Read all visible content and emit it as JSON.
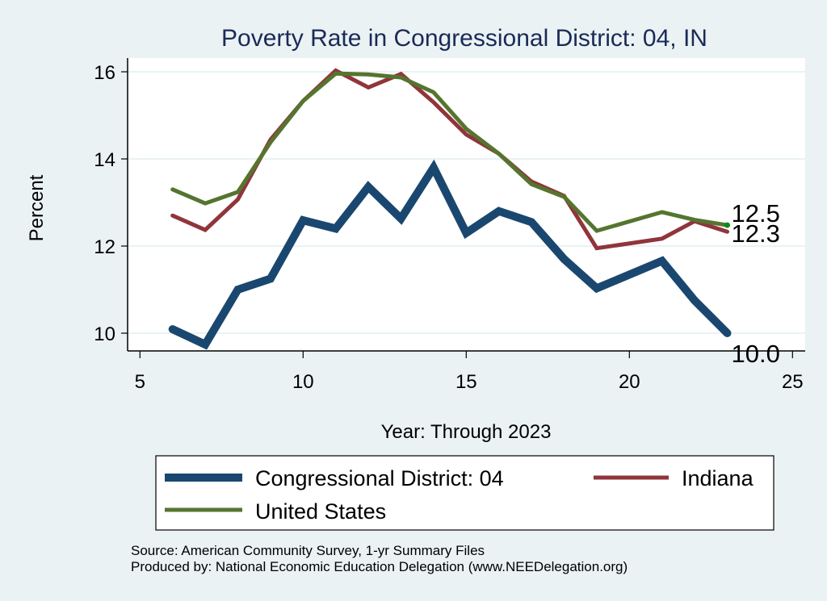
{
  "chart_data": {
    "type": "line",
    "title": "Poverty Rate in Congressional District:  04, IN",
    "xlabel": "Year: Through 2023",
    "ylabel": "Percent",
    "xlim": [
      4.6,
      25.4
    ],
    "ylim": [
      9.57,
      16.3
    ],
    "xticks": [
      5,
      10,
      15,
      20,
      25
    ],
    "yticks": [
      10,
      12,
      14,
      16
    ],
    "xtick_labels": [
      "5",
      "10",
      "15",
      "20",
      "25"
    ],
    "ytick_labels": [
      "10",
      "12",
      "14",
      "16"
    ],
    "grid": true,
    "legend_position": "bottom",
    "series": [
      {
        "name": "Congressional District:  04",
        "color": "#1a476f",
        "x": [
          6,
          7,
          8,
          9,
          10,
          11,
          12,
          13,
          14,
          15,
          16,
          17,
          18,
          19,
          21,
          22,
          23
        ],
        "values": [
          10.09,
          9.74,
          11.0,
          11.25,
          12.59,
          12.4,
          13.36,
          12.63,
          13.8,
          12.3,
          12.8,
          12.55,
          11.7,
          11.03,
          11.66,
          10.75,
          10.0
        ],
        "end_label": "10.0"
      },
      {
        "name": "Indiana",
        "color": "#90353b",
        "x": [
          6,
          7,
          8,
          9,
          10,
          11,
          12,
          13,
          14,
          15,
          16,
          17,
          18,
          19,
          21,
          22,
          23
        ],
        "values": [
          12.7,
          12.37,
          13.07,
          14.44,
          15.33,
          16.03,
          15.64,
          15.95,
          15.3,
          14.56,
          14.12,
          13.48,
          13.15,
          11.95,
          12.17,
          12.57,
          12.33
        ],
        "end_label": "12.3"
      },
      {
        "name": "United States",
        "color": "#55752f",
        "x": [
          6,
          7,
          8,
          9,
          10,
          11,
          12,
          13,
          14,
          15,
          16,
          17,
          18,
          19,
          21,
          22,
          23
        ],
        "values": [
          13.3,
          12.98,
          13.24,
          14.38,
          15.33,
          15.96,
          15.94,
          15.87,
          15.53,
          14.69,
          14.12,
          13.42,
          13.13,
          12.35,
          12.78,
          12.6,
          12.48
        ],
        "end_label": "12.5"
      }
    ],
    "notes": [
      "Source: American Community Survey, 1-yr Summary Files",
      "Produced by: National Economic Education Delegation (www.NEEDelegation.org)"
    ]
  }
}
